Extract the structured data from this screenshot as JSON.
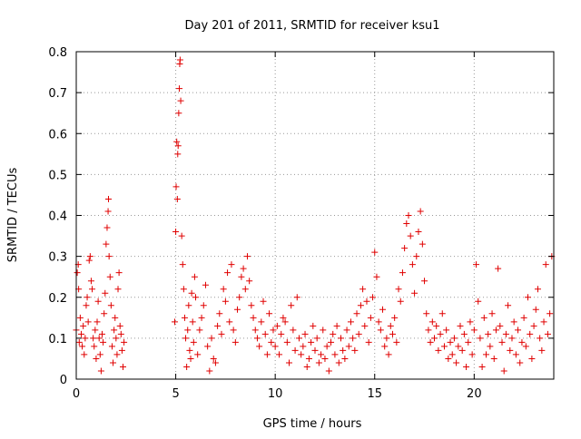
{
  "chart_data": {
    "type": "scatter",
    "title": "Day 201 of 2011, SRMTID for receiver ksu1",
    "xlabel": "GPS time / hours",
    "ylabel": "SRMTID / TECUs",
    "xlim": [
      0,
      24
    ],
    "ylim": [
      0,
      0.8
    ],
    "xticks": [
      0,
      5,
      10,
      15,
      20
    ],
    "yticks": [
      0,
      0.1,
      0.2,
      0.3,
      0.4,
      0.5,
      0.6,
      0.7,
      0.8
    ],
    "xtick_labels": [
      "0",
      "5",
      "10",
      "15",
      "20"
    ],
    "ytick_labels": [
      "0",
      "0.1",
      "0.2",
      "0.3",
      "0.4",
      "0.5",
      "0.6",
      "0.7",
      "0.8"
    ],
    "grid": true,
    "marker": "+",
    "color": "#e00000",
    "series": [
      {
        "name": "SRMTID",
        "x": [
          0.0,
          0.05,
          0.1,
          0.12,
          0.15,
          0.2,
          0.25,
          0.3,
          0.35,
          0.4,
          0.45,
          0.5,
          0.55,
          0.6,
          0.65,
          0.7,
          0.75,
          0.8,
          0.85,
          0.9,
          0.95,
          1.0,
          1.05,
          1.1,
          1.15,
          1.2,
          1.25,
          1.3,
          1.35,
          1.4,
          1.45,
          1.5,
          1.55,
          1.6,
          1.62,
          1.65,
          1.7,
          1.75,
          1.8,
          1.85,
          1.9,
          1.95,
          2.0,
          2.05,
          2.1,
          2.15,
          2.2,
          2.25,
          2.3,
          2.35,
          2.4,
          4.95,
          5.0,
          5.02,
          5.05,
          5.08,
          5.1,
          5.12,
          5.15,
          5.18,
          5.2,
          5.22,
          5.25,
          5.3,
          5.35,
          5.4,
          5.45,
          5.5,
          5.55,
          5.6,
          5.65,
          5.7,
          5.75,
          5.8,
          5.85,
          5.9,
          5.95,
          6.0,
          6.1,
          6.2,
          6.3,
          6.4,
          6.5,
          6.6,
          6.7,
          6.8,
          6.9,
          7.0,
          7.1,
          7.2,
          7.3,
          7.4,
          7.5,
          7.6,
          7.7,
          7.8,
          7.9,
          8.0,
          8.1,
          8.2,
          8.3,
          8.4,
          8.5,
          8.6,
          8.7,
          8.8,
          8.9,
          9.0,
          9.1,
          9.2,
          9.3,
          9.4,
          9.5,
          9.6,
          9.7,
          9.8,
          9.9,
          10.0,
          10.1,
          10.2,
          10.3,
          10.4,
          10.5,
          10.6,
          10.7,
          10.8,
          10.9,
          11.0,
          11.1,
          11.2,
          11.3,
          11.4,
          11.5,
          11.6,
          11.7,
          11.8,
          11.9,
          12.0,
          12.1,
          12.2,
          12.3,
          12.4,
          12.5,
          12.6,
          12.7,
          12.8,
          12.9,
          13.0,
          13.1,
          13.2,
          13.3,
          13.4,
          13.5,
          13.6,
          13.7,
          13.8,
          13.9,
          14.0,
          14.1,
          14.2,
          14.3,
          14.4,
          14.5,
          14.6,
          14.7,
          14.8,
          14.9,
          15.0,
          15.1,
          15.2,
          15.3,
          15.4,
          15.5,
          15.6,
          15.7,
          15.8,
          15.9,
          16.0,
          16.1,
          16.2,
          16.3,
          16.4,
          16.5,
          16.6,
          16.7,
          16.8,
          16.9,
          17.0,
          17.1,
          17.2,
          17.3,
          17.4,
          17.5,
          17.6,
          17.7,
          17.8,
          17.9,
          18.0,
          18.1,
          18.2,
          18.3,
          18.4,
          18.5,
          18.6,
          18.7,
          18.8,
          18.9,
          19.0,
          19.1,
          19.2,
          19.3,
          19.4,
          19.5,
          19.6,
          19.7,
          19.8,
          19.9,
          20.0,
          20.1,
          20.2,
          20.3,
          20.4,
          20.5,
          20.6,
          20.7,
          20.8,
          20.9,
          21.0,
          21.1,
          21.2,
          21.3,
          21.4,
          21.5,
          21.6,
          21.7,
          21.8,
          21.9,
          22.0,
          22.1,
          22.2,
          22.3,
          22.4,
          22.5,
          22.6,
          22.7,
          22.8,
          22.9,
          23.0,
          23.1,
          23.2,
          23.3,
          23.4,
          23.5,
          23.6,
          23.7,
          23.8,
          23.9
        ],
        "y": [
          0.12,
          0.26,
          0.28,
          0.22,
          0.09,
          0.15,
          0.11,
          0.08,
          0.13,
          0.06,
          0.1,
          0.18,
          0.2,
          0.14,
          0.29,
          0.3,
          0.24,
          0.22,
          0.1,
          0.08,
          0.12,
          0.05,
          0.14,
          0.19,
          0.1,
          0.06,
          0.02,
          0.11,
          0.09,
          0.16,
          0.21,
          0.33,
          0.37,
          0.41,
          0.44,
          0.3,
          0.25,
          0.18,
          0.08,
          0.04,
          0.12,
          0.15,
          0.1,
          0.06,
          0.22,
          0.26,
          0.13,
          0.11,
          0.07,
          0.03,
          0.09,
          0.14,
          0.36,
          0.47,
          0.58,
          0.44,
          0.55,
          0.57,
          0.65,
          0.71,
          0.77,
          0.78,
          0.68,
          0.35,
          0.28,
          0.22,
          0.15,
          0.1,
          0.03,
          0.12,
          0.18,
          0.07,
          0.05,
          0.21,
          0.14,
          0.09,
          0.25,
          0.2,
          0.06,
          0.12,
          0.15,
          0.18,
          0.23,
          0.08,
          0.02,
          0.1,
          0.05,
          0.04,
          0.13,
          0.16,
          0.11,
          0.22,
          0.19,
          0.26,
          0.14,
          0.28,
          0.12,
          0.09,
          0.17,
          0.2,
          0.25,
          0.27,
          0.22,
          0.3,
          0.24,
          0.18,
          0.15,
          0.12,
          0.1,
          0.08,
          0.14,
          0.19,
          0.11,
          0.06,
          0.16,
          0.09,
          0.12,
          0.08,
          0.13,
          0.06,
          0.11,
          0.15,
          0.14,
          0.09,
          0.04,
          0.18,
          0.12,
          0.07,
          0.2,
          0.1,
          0.06,
          0.08,
          0.11,
          0.03,
          0.05,
          0.09,
          0.13,
          0.07,
          0.1,
          0.04,
          0.06,
          0.12,
          0.05,
          0.08,
          0.02,
          0.09,
          0.11,
          0.06,
          0.13,
          0.04,
          0.1,
          0.07,
          0.05,
          0.12,
          0.08,
          0.14,
          0.1,
          0.07,
          0.16,
          0.11,
          0.18,
          0.22,
          0.13,
          0.19,
          0.09,
          0.15,
          0.2,
          0.31,
          0.25,
          0.14,
          0.12,
          0.17,
          0.08,
          0.1,
          0.06,
          0.13,
          0.11,
          0.15,
          0.09,
          0.22,
          0.19,
          0.26,
          0.32,
          0.38,
          0.4,
          0.35,
          0.28,
          0.21,
          0.3,
          0.36,
          0.41,
          0.33,
          0.24,
          0.16,
          0.12,
          0.09,
          0.14,
          0.1,
          0.13,
          0.07,
          0.11,
          0.16,
          0.08,
          0.12,
          0.05,
          0.09,
          0.06,
          0.1,
          0.04,
          0.08,
          0.13,
          0.07,
          0.11,
          0.03,
          0.09,
          0.14,
          0.06,
          0.12,
          0.28,
          0.19,
          0.1,
          0.03,
          0.15,
          0.06,
          0.11,
          0.08,
          0.16,
          0.05,
          0.12,
          0.27,
          0.13,
          0.09,
          0.02,
          0.11,
          0.18,
          0.07,
          0.1,
          0.14,
          0.06,
          0.12,
          0.04,
          0.09,
          0.15,
          0.08,
          0.2,
          0.11,
          0.05,
          0.13,
          0.17,
          0.22,
          0.1,
          0.07,
          0.14,
          0.28,
          0.11,
          0.16,
          0.3
        ]
      }
    ]
  }
}
